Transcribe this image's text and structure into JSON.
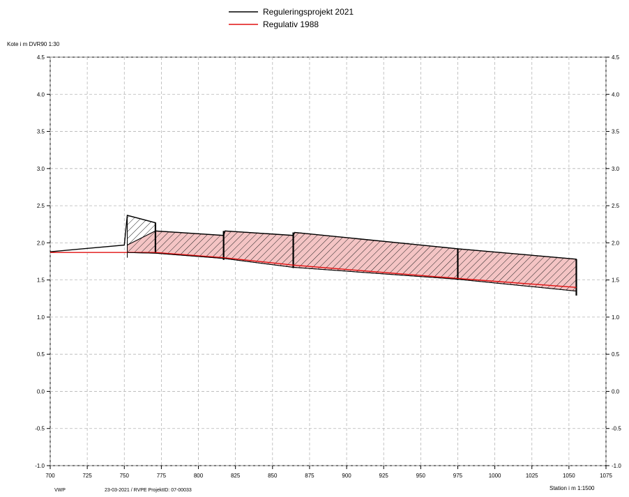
{
  "chart_data": {
    "type": "line",
    "ylabel": "Kote i m DVR90 1:30",
    "xlabel": "Station i m 1:1500",
    "xlim": [
      700,
      1075
    ],
    "ylim": [
      -1.0,
      4.5
    ],
    "x_ticks": [
      "700",
      "725",
      "750",
      "775",
      "800",
      "825",
      "850",
      "875",
      "900",
      "925",
      "950",
      "975",
      "1000",
      "1025",
      "1050",
      "1075"
    ],
    "y_ticks": [
      "4.5",
      "4.0",
      "3.5",
      "3.0",
      "2.5",
      "2.0",
      "1.5",
      "1.0",
      "0.5",
      "0.0",
      "-0.5",
      "-1.0"
    ],
    "grid": true,
    "legend_position": "top-center",
    "series": [
      {
        "name": "Reguleringsprojekt 2021",
        "color": "#000000",
        "points": [
          [
            700,
            1.88
          ],
          [
            750,
            1.97
          ],
          [
            752,
            2.37
          ],
          [
            771,
            2.27
          ],
          [
            771,
            2.16
          ],
          [
            817,
            2.1
          ],
          [
            818,
            2.16
          ],
          [
            864,
            2.1
          ],
          [
            865,
            2.14
          ],
          [
            975,
            1.92
          ],
          [
            1055,
            1.78
          ]
        ]
      },
      {
        "name": "Regulativ 1988",
        "color": "#e01010",
        "points": [
          [
            700,
            1.87
          ],
          [
            730,
            1.87
          ],
          [
            752,
            1.87
          ],
          [
            771,
            1.87
          ],
          [
            817,
            1.8
          ],
          [
            864,
            1.7
          ],
          [
            975,
            1.52
          ],
          [
            1055,
            1.4
          ]
        ]
      }
    ],
    "bottom_line": [
      [
        752,
        1.87
      ],
      [
        771,
        1.86
      ],
      [
        817,
        1.79
      ],
      [
        864,
        1.67
      ],
      [
        975,
        1.51
      ],
      [
        1055,
        1.35
      ]
    ],
    "cross_sections": [
      {
        "x": 771,
        "top": 2.27,
        "bottom": 1.86
      },
      {
        "x": 817,
        "top": 2.16,
        "bottom": 1.77
      },
      {
        "x": 864,
        "top": 2.14,
        "bottom": 1.66
      },
      {
        "x": 975,
        "top": 1.92,
        "bottom": 1.5
      },
      {
        "x": 1055,
        "top": 1.78,
        "bottom": 1.29
      }
    ],
    "hatch_colors": {
      "fill": "#f3c2c2",
      "stroke": "#000000"
    },
    "footer": {
      "left": "VWP",
      "date_info": "23-03-2021 / RVPE  ProjektID: 07-00033",
      "right": "Station i m  1:1500"
    }
  }
}
